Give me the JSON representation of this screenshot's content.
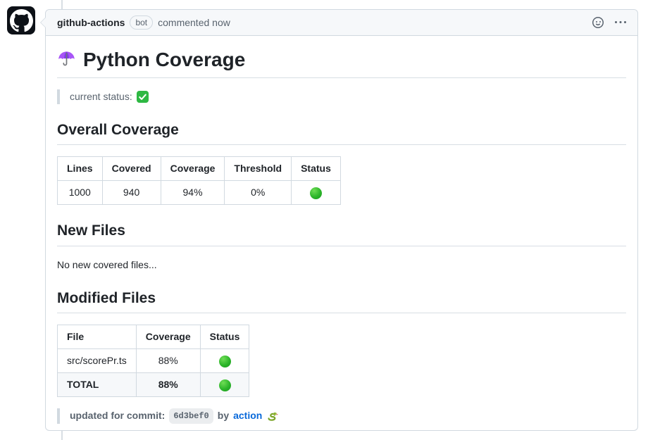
{
  "header": {
    "author": "github-actions",
    "bot_badge": "bot",
    "meta": "commented now"
  },
  "body": {
    "title": "Python Coverage",
    "status_label": "current status:",
    "overall_heading": "Overall Coverage",
    "new_files_heading": "New Files",
    "new_files_text": "No new covered files...",
    "modified_heading": "Modified Files",
    "footer": {
      "label": "updated for commit:",
      "commit_sha": "6d3bef0",
      "by_text": "by",
      "link_text": "action"
    }
  },
  "overall_table": {
    "headers": [
      "Lines",
      "Covered",
      "Coverage",
      "Threshold",
      "Status"
    ],
    "aligns": [
      "center",
      "center",
      "center",
      "center",
      "center"
    ],
    "rows": [
      {
        "cells": [
          "1000",
          "940",
          "94%",
          "0%",
          "🟢"
        ],
        "bold": false
      }
    ]
  },
  "modified_table": {
    "headers": [
      "File",
      "Coverage",
      "Status"
    ],
    "aligns": [
      "left",
      "center",
      "center"
    ],
    "rows": [
      {
        "cells": [
          "src/scorePr.ts",
          "88%",
          "🟢"
        ],
        "bold": false
      },
      {
        "cells": [
          "TOTAL",
          "88%",
          "🟢"
        ],
        "bold": true
      }
    ]
  },
  "icons": {
    "avatar": "github-octocat",
    "title_icon": "purple-umbrella-emoji",
    "status_icon": "green-check-emoji",
    "table_status_icon": "green-circle-emoji",
    "link_suffix_icon": "snake-emoji",
    "reaction_icon": "smiley-face",
    "menu_icon": "kebab-horizontal"
  },
  "colors": {
    "link": "#0969da",
    "header_bg": "#f6f8fa",
    "border": "#d1d9e0",
    "muted_text": "#59636e",
    "primary_text": "#1f2328",
    "status_green": "#2cb52a",
    "timeline": "#d8dee4"
  }
}
